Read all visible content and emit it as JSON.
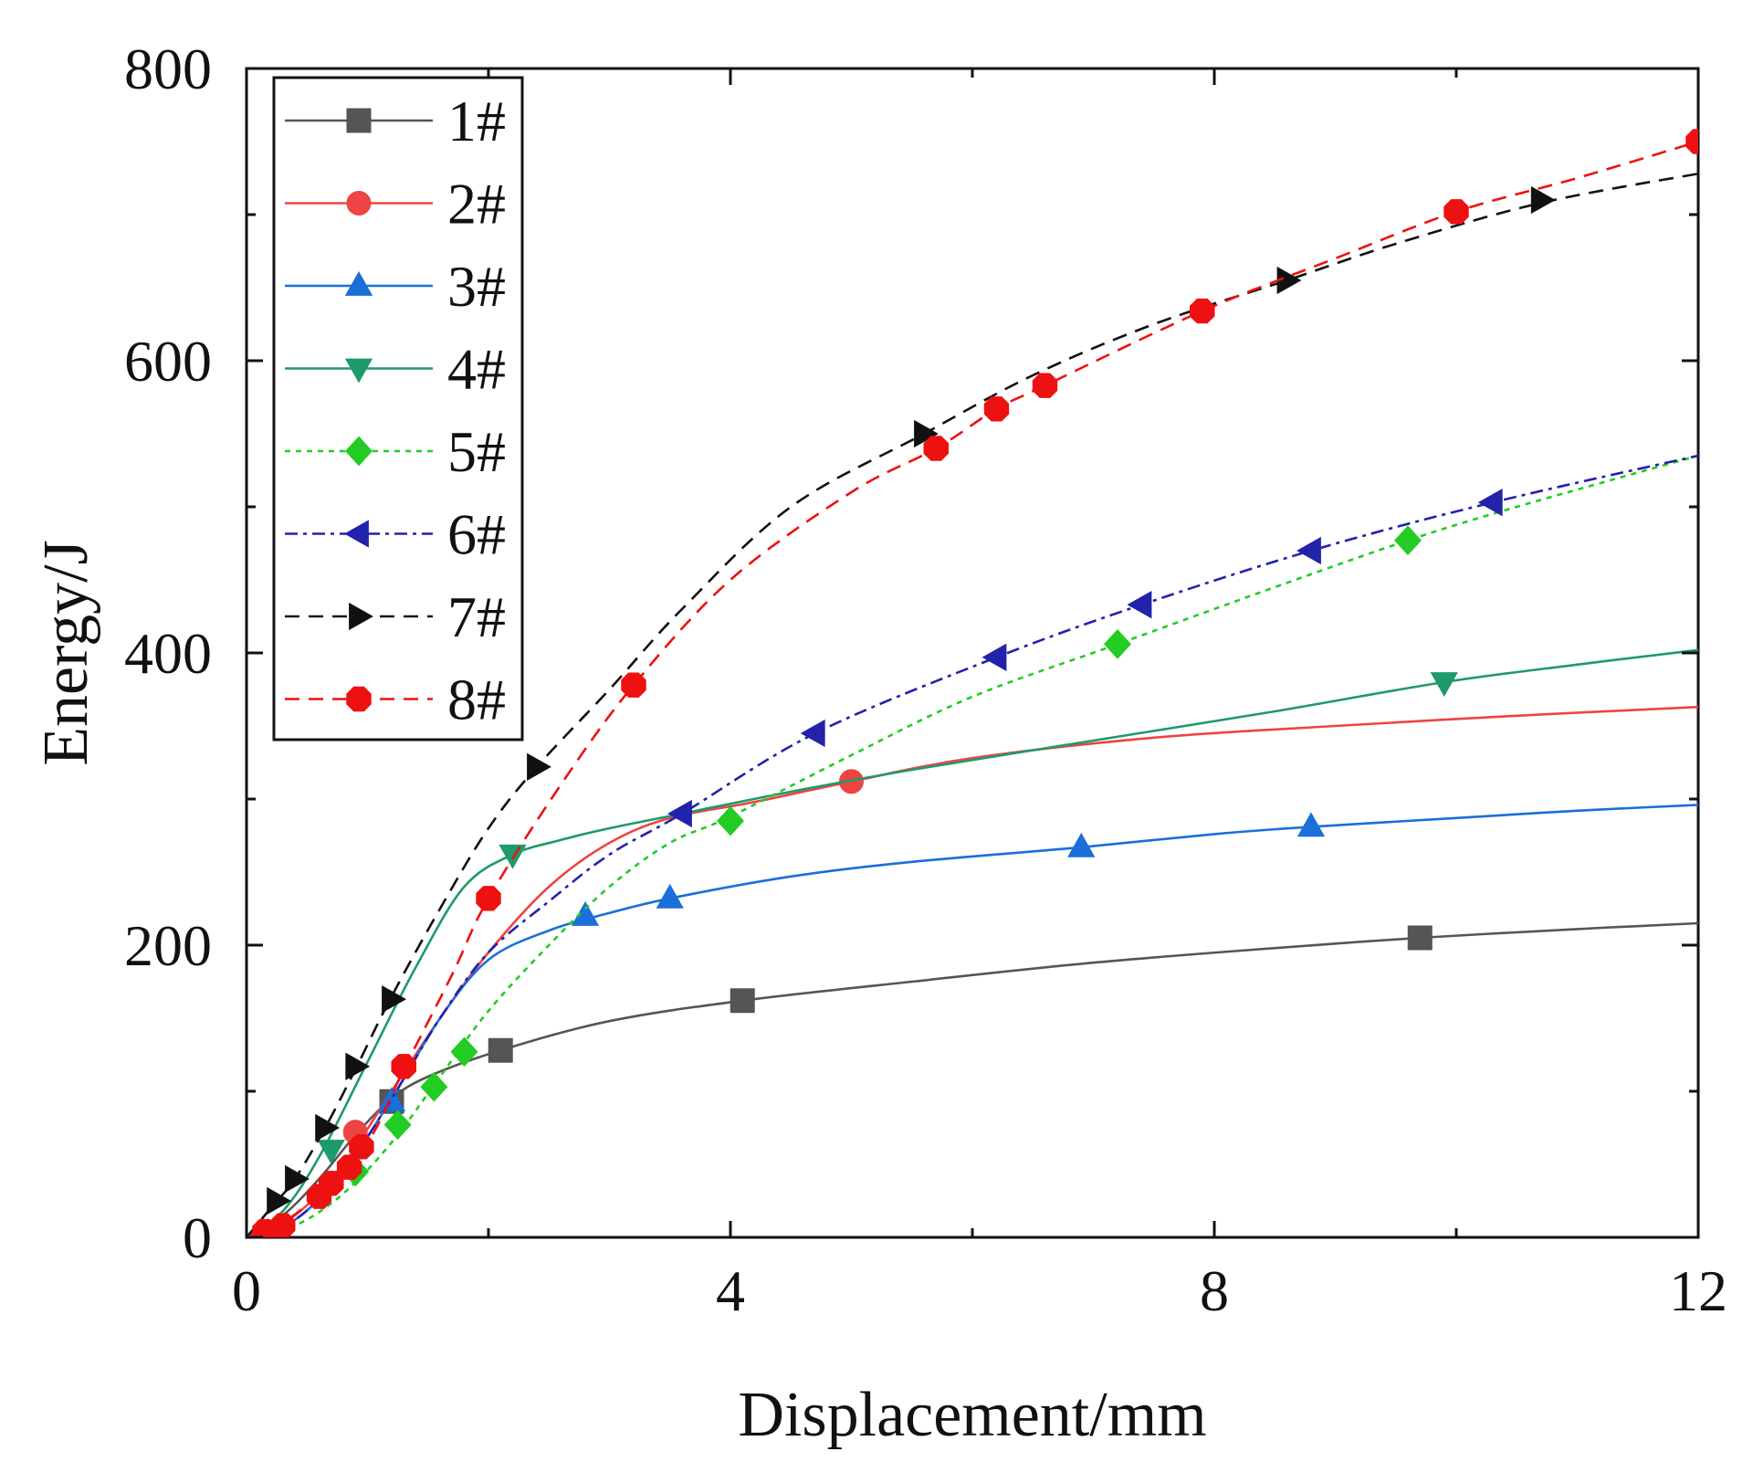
{
  "chart_data": {
    "type": "line",
    "title": "",
    "xlabel": "Displacement/mm",
    "ylabel": "Energy/J",
    "xlim": [
      0,
      12
    ],
    "ylim": [
      0,
      800
    ],
    "xticks": [
      0,
      4,
      8,
      12
    ],
    "yticks": [
      0,
      200,
      400,
      600,
      800
    ],
    "legend_position": "top-left",
    "grid": false,
    "series": [
      {
        "name": "1#",
        "color": "#555555",
        "style": "solid",
        "marker": "square",
        "x": [
          0,
          0.3,
          0.6,
          0.9,
          1.2,
          1.5,
          2.1,
          3.0,
          4.1,
          5.5,
          7.0,
          8.5,
          9.7,
          11.0,
          12.0
        ],
        "y": [
          0,
          15,
          40,
          70,
          95,
          110,
          128,
          148,
          162,
          175,
          188,
          198,
          205,
          211,
          215
        ],
        "markers_x": [
          1.2,
          2.1,
          4.1,
          9.7
        ],
        "markers_y": [
          93,
          128,
          162,
          205
        ]
      },
      {
        "name": "2#",
        "color": "#ee4444",
        "style": "solid",
        "marker": "circle",
        "x": [
          0,
          0.4,
          0.8,
          1.2,
          1.6,
          2.0,
          2.5,
          3.0,
          3.5,
          4.2,
          5.0,
          6.0,
          7.5,
          9.0,
          10.5,
          12.0
        ],
        "y": [
          0,
          15,
          50,
          100,
          150,
          195,
          240,
          270,
          287,
          298,
          312,
          328,
          342,
          350,
          357,
          363
        ],
        "markers_x": [
          0.9,
          5.0
        ],
        "markers_y": [
          72,
          312
        ]
      },
      {
        "name": "3#",
        "color": "#1a6fd8",
        "style": "solid",
        "marker": "triangle-up",
        "x": [
          0,
          0.4,
          0.8,
          1.2,
          1.6,
          2.0,
          2.5,
          3.0,
          3.5,
          4.5,
          5.5,
          6.9,
          8.0,
          8.8,
          10.0,
          11.0,
          12.0
        ],
        "y": [
          0,
          12,
          45,
          95,
          150,
          190,
          210,
          222,
          232,
          247,
          257,
          267,
          276,
          281,
          287,
          292,
          296
        ],
        "markers_x": [
          1.2,
          2.8,
          3.5,
          6.9,
          8.8
        ],
        "markers_y": [
          93,
          220,
          232,
          267,
          281
        ]
      },
      {
        "name": "4#",
        "color": "#1f9a6a",
        "style": "solid",
        "marker": "triangle-down",
        "x": [
          0,
          0.3,
          0.6,
          1.0,
          1.4,
          1.8,
          2.2,
          2.6,
          3.0,
          3.6,
          4.5,
          5.5,
          7.0,
          8.5,
          9.9,
          11.0,
          12.0
        ],
        "y": [
          0,
          18,
          55,
          120,
          185,
          240,
          262,
          272,
          280,
          290,
          305,
          320,
          340,
          360,
          380,
          392,
          402
        ],
        "markers_x": [
          0.7,
          2.2,
          9.9
        ],
        "markers_y": [
          60,
          262,
          380
        ]
      },
      {
        "name": "5#",
        "color": "#22cc22",
        "style": "dotted",
        "marker": "diamond",
        "x": [
          0,
          0.4,
          0.8,
          1.2,
          1.6,
          2.0,
          2.5,
          3.0,
          3.5,
          4.0,
          5.0,
          6.0,
          7.2,
          8.5,
          9.6,
          10.5,
          12.0
        ],
        "y": [
          0,
          8,
          30,
          65,
          110,
          155,
          200,
          240,
          270,
          288,
          330,
          370,
          406,
          445,
          477,
          500,
          535
        ],
        "markers_x": [
          0.9,
          1.25,
          1.55,
          1.8,
          4.0,
          7.2,
          9.6
        ],
        "markers_y": [
          45,
          77,
          103,
          127,
          285,
          406,
          477
        ]
      },
      {
        "name": "6#",
        "color": "#2222aa",
        "style": "dashdot",
        "marker": "triangle-left",
        "x": [
          0,
          0.4,
          0.8,
          1.2,
          1.6,
          2.0,
          2.5,
          3.0,
          3.6,
          4.7,
          6.2,
          7.4,
          8.8,
          10.3,
          12.0
        ],
        "y": [
          0,
          12,
          45,
          95,
          150,
          195,
          230,
          262,
          290,
          345,
          397,
          433,
          470,
          503,
          535
        ],
        "markers_x": [
          3.6,
          4.7,
          6.2,
          7.4,
          8.8,
          10.3
        ],
        "markers_y": [
          290,
          345,
          397,
          433,
          470,
          503
        ]
      },
      {
        "name": "7#",
        "color": "#111111",
        "style": "dashed",
        "marker": "triangle-right",
        "x": [
          0,
          0.2,
          0.4,
          0.65,
          0.9,
          1.2,
          1.6,
          2.0,
          2.4,
          3.0,
          3.6,
          4.5,
          5.6,
          6.5,
          7.5,
          8.6,
          9.5,
          10.7,
          12.0
        ],
        "y": [
          0,
          20,
          40,
          75,
          115,
          165,
          225,
          280,
          322,
          375,
          430,
          500,
          550,
          590,
          625,
          655,
          680,
          708,
          728
        ],
        "markers_x": [
          0.25,
          0.4,
          0.65,
          0.9,
          1.2,
          2.4,
          5.6,
          8.6,
          10.7
        ],
        "markers_y": [
          25,
          40,
          75,
          117,
          163,
          322,
          550,
          655,
          710
        ]
      },
      {
        "name": "8#",
        "color": "#ee1111",
        "style": "dashed",
        "marker": "octagon",
        "x": [
          0,
          0.3,
          0.6,
          1.0,
          1.3,
          1.7,
          2.0,
          2.6,
          3.2,
          4.0,
          5.0,
          5.7,
          6.2,
          6.6,
          7.9,
          9.0,
          10.0,
          11.0,
          12.0
        ],
        "y": [
          0,
          10,
          30,
          65,
          115,
          180,
          232,
          310,
          378,
          450,
          510,
          540,
          567,
          583,
          634,
          670,
          702,
          725,
          750
        ],
        "markers_x": [
          0.15,
          0.3,
          0.6,
          0.7,
          0.85,
          0.95,
          1.3,
          2.0,
          3.2,
          5.7,
          6.2,
          6.6,
          7.9,
          10.0,
          12.0
        ],
        "markers_y": [
          4,
          8,
          28,
          37,
          48,
          62,
          117,
          232,
          378,
          540,
          567,
          583,
          634,
          702,
          750
        ]
      }
    ]
  }
}
